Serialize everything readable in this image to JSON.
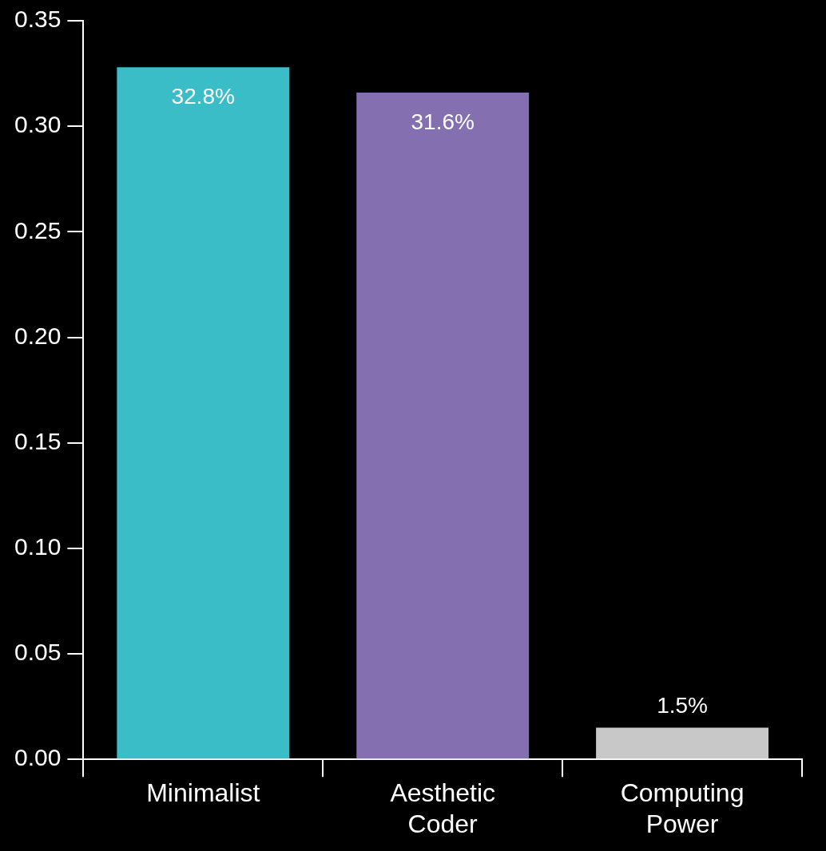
{
  "chart_data": {
    "type": "bar",
    "categories": [
      "Minimalist",
      "Aesthetic Coder",
      "Computing Power"
    ],
    "values": [
      0.328,
      0.316,
      0.015
    ],
    "colors": [
      "#3bbdc8",
      "#8470b0",
      "#c8c8c8"
    ],
    "value_labels": [
      "32.8%",
      "31.6%",
      "1.5%"
    ],
    "ylim": [
      0,
      0.35
    ],
    "yticks": [
      {
        "value": 0,
        "label": "0.00"
      },
      {
        "value": 0.05,
        "label": "0.05"
      },
      {
        "value": 0.1,
        "label": "0.10"
      },
      {
        "value": 0.15,
        "label": "0.15"
      },
      {
        "value": 0.2,
        "label": "0.20"
      },
      {
        "value": 0.25,
        "label": "0.25"
      },
      {
        "value": 0.3,
        "label": "0.30"
      },
      {
        "value": 0.35,
        "label": "0.35"
      }
    ],
    "grid": false,
    "legend": false
  }
}
